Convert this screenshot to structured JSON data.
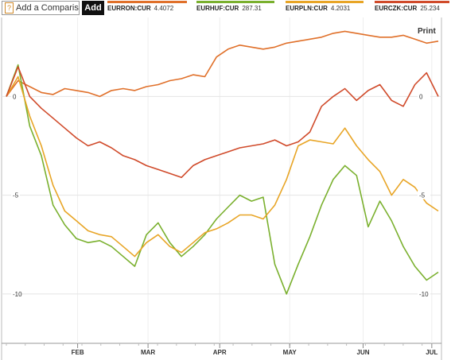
{
  "toolbar": {
    "compare_value": "Add a Compariso",
    "help_icon_glyph": "?",
    "add_label": "Add"
  },
  "legend": [
    {
      "ticker": "EURRON:CUR",
      "value": "4.4072",
      "color": "#e0702a"
    },
    {
      "ticker": "EURHUF:CUR",
      "value": "287.31",
      "color": "#7ab02e"
    },
    {
      "ticker": "EURPLN:CUR",
      "value": "4.2031",
      "color": "#e8a526"
    },
    {
      "ticker": "EURCZK:CUR",
      "value": "25.234",
      "color": "#d04a2a"
    }
  ],
  "print_label": "Print",
  "chart_data": {
    "type": "line",
    "x_labels": [
      "FEB",
      "MAR",
      "APR",
      "MAY",
      "JUN",
      "JUL"
    ],
    "ylim": [
      -12.5,
      4
    ],
    "y_ticks_left": [
      "0",
      "-5",
      "-10"
    ],
    "y_ticks_right": [
      "0",
      "-5",
      "-10"
    ],
    "grid": true,
    "series": [
      {
        "name": "EURRON:CUR",
        "color": "#e0702a",
        "values": [
          0.0,
          0.8,
          0.5,
          0.2,
          0.1,
          0.4,
          0.3,
          0.2,
          0.0,
          0.3,
          0.4,
          0.3,
          0.5,
          0.6,
          0.8,
          0.9,
          1.1,
          1.0,
          2.0,
          2.4,
          2.6,
          2.5,
          2.4,
          2.5,
          2.7,
          2.8,
          2.9,
          3.0,
          3.2,
          3.3,
          3.2,
          3.1,
          3.0,
          3.0,
          3.1,
          2.9,
          2.7,
          2.8
        ]
      },
      {
        "name": "EURHUF:CUR",
        "color": "#7ab02e",
        "values": [
          0.0,
          1.6,
          -1.5,
          -3.0,
          -5.5,
          -6.5,
          -7.2,
          -7.4,
          -7.3,
          -7.6,
          -8.1,
          -8.6,
          -7.0,
          -6.4,
          -7.4,
          -8.1,
          -7.6,
          -7.0,
          -6.2,
          -5.6,
          -5.0,
          -5.3,
          -5.1,
          -8.5,
          -10.0,
          -8.5,
          -7.1,
          -5.5,
          -4.2,
          -3.5,
          -4.0,
          -6.6,
          -5.3,
          -6.3,
          -7.6,
          -8.6,
          -9.3,
          -8.9
        ]
      },
      {
        "name": "EURPLN:CUR",
        "color": "#e8a526",
        "values": [
          0.0,
          1.0,
          -1.0,
          -2.5,
          -4.5,
          -5.8,
          -6.3,
          -6.8,
          -7.0,
          -7.1,
          -7.6,
          -8.1,
          -7.4,
          -7.0,
          -7.6,
          -7.9,
          -7.4,
          -6.9,
          -6.7,
          -6.4,
          -6.0,
          -6.0,
          -6.2,
          -5.5,
          -4.2,
          -2.5,
          -2.2,
          -2.3,
          -2.4,
          -1.6,
          -2.5,
          -3.2,
          -3.8,
          -5.0,
          -4.2,
          -4.6,
          -5.4,
          -5.8
        ]
      },
      {
        "name": "EURCZK:CUR",
        "color": "#d04a2a",
        "values": [
          0.0,
          1.5,
          0.0,
          -0.6,
          -1.1,
          -1.6,
          -2.1,
          -2.5,
          -2.3,
          -2.6,
          -3.0,
          -3.2,
          -3.5,
          -3.7,
          -3.9,
          -4.1,
          -3.5,
          -3.2,
          -3.0,
          -2.8,
          -2.6,
          -2.5,
          -2.4,
          -2.2,
          -2.5,
          -2.3,
          -1.8,
          -0.5,
          0.0,
          0.4,
          -0.2,
          0.3,
          0.6,
          -0.2,
          -0.5,
          0.6,
          1.2,
          0.0
        ]
      }
    ]
  }
}
